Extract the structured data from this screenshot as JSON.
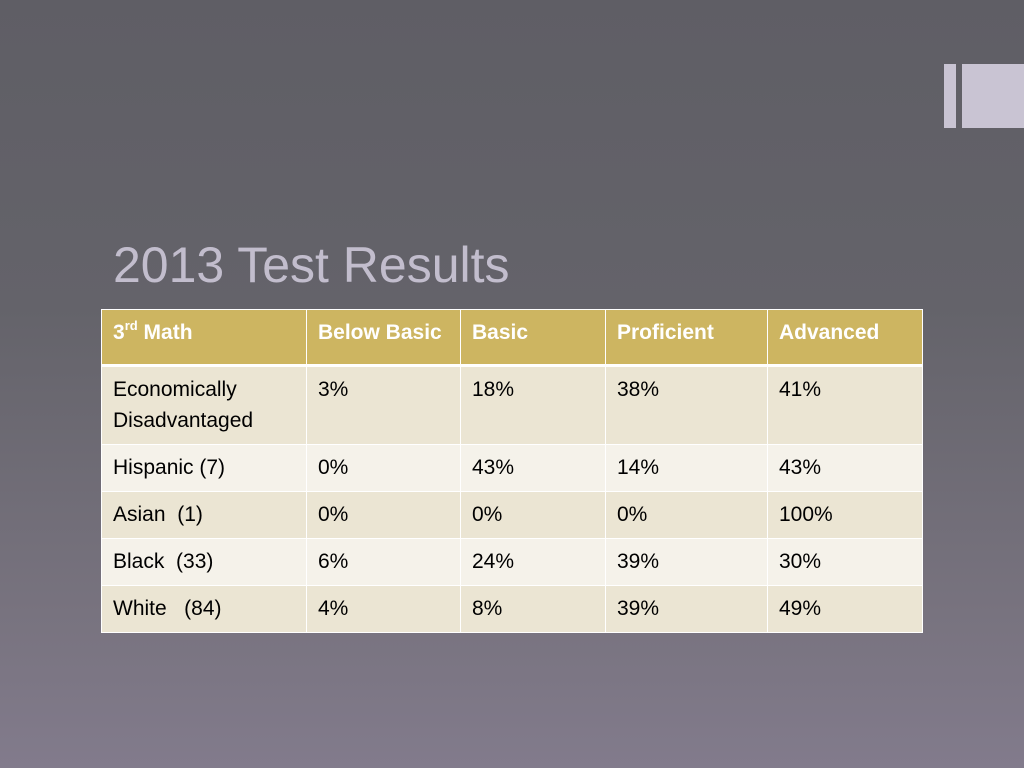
{
  "slide": {
    "title": "2013 Test Results",
    "table": {
      "header": {
        "subject_base": "3",
        "subject_sup": "rd",
        "subject_rest": " Math",
        "columns": [
          "Below Basic",
          "Basic",
          "Proficient",
          "Advanced"
        ]
      },
      "rows": [
        {
          "label": "Economically Disadvantaged",
          "values": [
            "3%",
            "18%",
            "38%",
            "41%"
          ]
        },
        {
          "label": "Hispanic (7)",
          "values": [
            "0%",
            "43%",
            "14%",
            "43%"
          ]
        },
        {
          "label": "Asian  (1)",
          "values": [
            "0%",
            "0%",
            "0%",
            "100%"
          ]
        },
        {
          "label": "Black  (33)",
          "values": [
            "6%",
            "24%",
            "39%",
            "30%"
          ]
        },
        {
          "label": "White   (84)",
          "values": [
            "4%",
            "8%",
            "39%",
            "49%"
          ]
        }
      ]
    },
    "colors": {
      "header_fill": "#cdb561",
      "row_fill_odd": "#ebe5d3",
      "row_fill_even": "#f5f2ea",
      "title_text": "#c2bdcd",
      "decoration": "#c9c4d3"
    }
  }
}
